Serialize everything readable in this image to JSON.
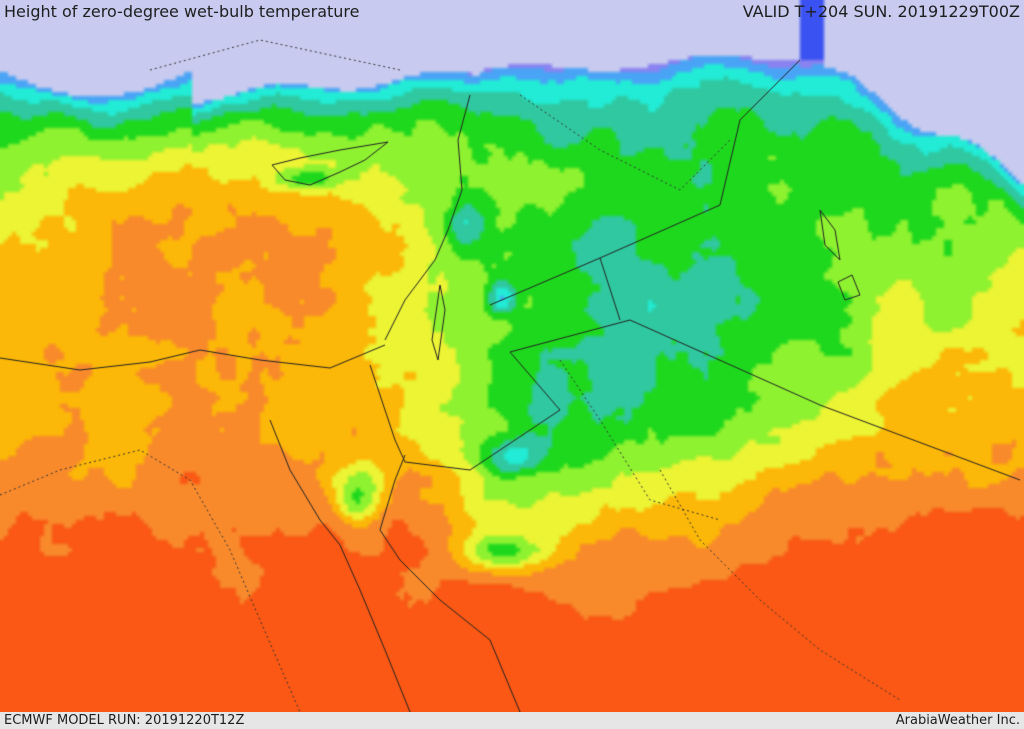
{
  "header": {
    "title": "Height of zero-degree wet-bulb temperature",
    "valid_time": "VALID T+204 SUN. 20191229T00Z"
  },
  "footer": {
    "model_run": "ECMWF MODEL RUN: 20191220T12Z",
    "credit": "ArabiaWeather Inc."
  },
  "map": {
    "sea_color": "#c8cbef",
    "border_color": "#222222",
    "color_scale_low_to_high": [
      "#3a52f2",
      "#8a82f0",
      "#4aa4f6",
      "#22ecd6",
      "#30c8a0",
      "#1ed81e",
      "#8ef230",
      "#ecf434",
      "#fcb808",
      "#f88a2c",
      "#fa5814"
    ]
  }
}
